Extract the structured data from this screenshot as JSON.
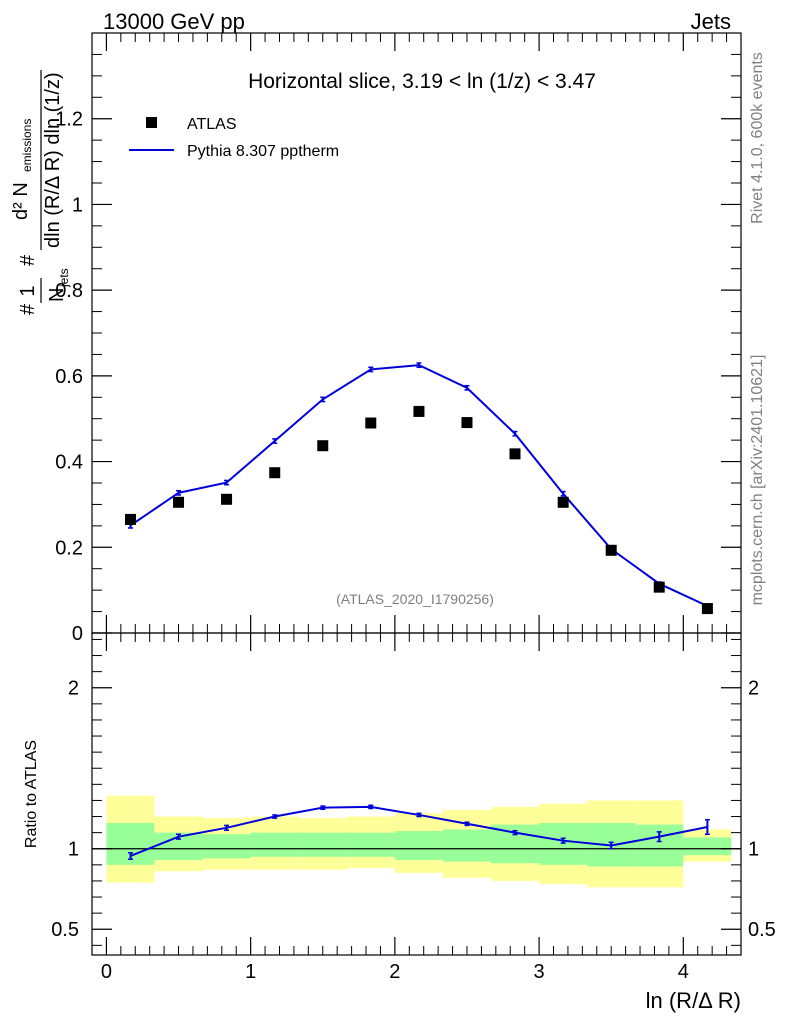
{
  "header": {
    "left": "13000 GeV pp",
    "right": "Jets"
  },
  "side": {
    "rivet": "Rivet 4.1.0,  600k events",
    "mcplots": "mcplots.cern.ch [arXiv:2401.10621]"
  },
  "colors": {
    "mc": "#0000dd",
    "data": "#000000",
    "band_outer": "#ffff99",
    "band_inner": "#99ff99",
    "watermark": "#808080"
  },
  "chart_data": [
    {
      "type": "scatter",
      "title": "Horizontal slice, 3.19 < ln (1/z) < 3.47",
      "watermark": "(ATLAS_2020_I1790256)",
      "ylabel": {
        "prefix": "#",
        "frac1_num": "1",
        "frac1_den": "N",
        "frac1_den_sub": "jets",
        "hash2": "#",
        "frac2_num": "d² N",
        "frac2_num_sub": "emissions",
        "frac2_den": "dln (R/Δ R) dln (1/z)"
      },
      "xlim": [
        -0.1,
        4.4
      ],
      "ylim": [
        0,
        1.4
      ],
      "yticks": [
        0,
        0.2,
        0.4,
        0.6,
        0.8,
        1,
        1.2
      ],
      "ytick_labels": [
        "0",
        "0.2",
        "0.4",
        "0.6",
        "0.8",
        "1",
        "1.2"
      ],
      "legend": [
        "ATLAS",
        "Pythia 8.307 pptherm"
      ],
      "x": [
        0.167,
        0.5,
        0.833,
        1.167,
        1.5,
        1.833,
        2.167,
        2.5,
        2.833,
        3.167,
        3.5,
        3.833,
        4.167
      ],
      "series": [
        {
          "name": "ATLAS",
          "values": [
            0.265,
            0.305,
            0.312,
            0.374,
            0.437,
            0.49,
            0.517,
            0.491,
            0.418,
            0.305,
            0.193,
            0.107,
            0.057
          ]
        },
        {
          "name": "Pythia 8.307 pptherm",
          "values": [
            0.251,
            0.327,
            0.351,
            0.448,
            0.545,
            0.615,
            0.625,
            0.572,
            0.465,
            0.325,
            0.196,
            0.115,
            0.063
          ],
          "errors": [
            0.006,
            0.005,
            0.005,
            0.005,
            0.005,
            0.005,
            0.005,
            0.005,
            0.005,
            0.005,
            0.004,
            0.004,
            0.003
          ]
        }
      ]
    },
    {
      "type": "line",
      "title": "",
      "ylabel": "Ratio to ATLAS",
      "xlabel": "ln (R/Δ R)",
      "xlim": [
        -0.1,
        4.4
      ],
      "ylim": [
        0.34,
        2.34
      ],
      "xticks": [
        0,
        1,
        2,
        3,
        4
      ],
      "xtick_labels": [
        "0",
        "1",
        "2",
        "3",
        "4"
      ],
      "yticks": [
        0.5,
        1,
        2
      ],
      "ytick_labels": [
        "0.5",
        "1",
        "2"
      ],
      "x": [
        0.167,
        0.5,
        0.833,
        1.167,
        1.5,
        1.833,
        2.167,
        2.5,
        2.833,
        3.167,
        3.5,
        3.833,
        4.167
      ],
      "ratio": [
        0.955,
        1.075,
        1.13,
        1.2,
        1.255,
        1.26,
        1.21,
        1.155,
        1.1,
        1.05,
        1.02,
        1.075,
        1.135
      ],
      "ratio_errors": [
        0.02,
        0.015,
        0.015,
        0.01,
        0.01,
        0.01,
        0.01,
        0.01,
        0.012,
        0.015,
        0.02,
        0.03,
        0.045
      ],
      "bins": [
        0,
        0.333,
        0.667,
        1.0,
        1.333,
        1.667,
        2.0,
        2.333,
        2.667,
        3.0,
        3.333,
        3.667,
        4.0,
        4.333
      ],
      "band_outer": [
        [
          0.79,
          1.33
        ],
        [
          0.86,
          1.2
        ],
        [
          0.87,
          1.19
        ],
        [
          0.87,
          1.2
        ],
        [
          0.87,
          1.19
        ],
        [
          0.88,
          1.2
        ],
        [
          0.85,
          1.22
        ],
        [
          0.82,
          1.24
        ],
        [
          0.8,
          1.26
        ],
        [
          0.78,
          1.28
        ],
        [
          0.76,
          1.3
        ],
        [
          0.76,
          1.3
        ],
        [
          0.92,
          1.12
        ]
      ],
      "band_inner": [
        [
          0.9,
          1.16
        ],
        [
          0.93,
          1.1
        ],
        [
          0.94,
          1.09
        ],
        [
          0.95,
          1.1
        ],
        [
          0.95,
          1.1
        ],
        [
          0.95,
          1.1
        ],
        [
          0.93,
          1.11
        ],
        [
          0.92,
          1.12
        ],
        [
          0.91,
          1.15
        ],
        [
          0.9,
          1.16
        ],
        [
          0.89,
          1.16
        ],
        [
          0.89,
          1.15
        ],
        [
          0.96,
          1.07
        ]
      ]
    }
  ]
}
